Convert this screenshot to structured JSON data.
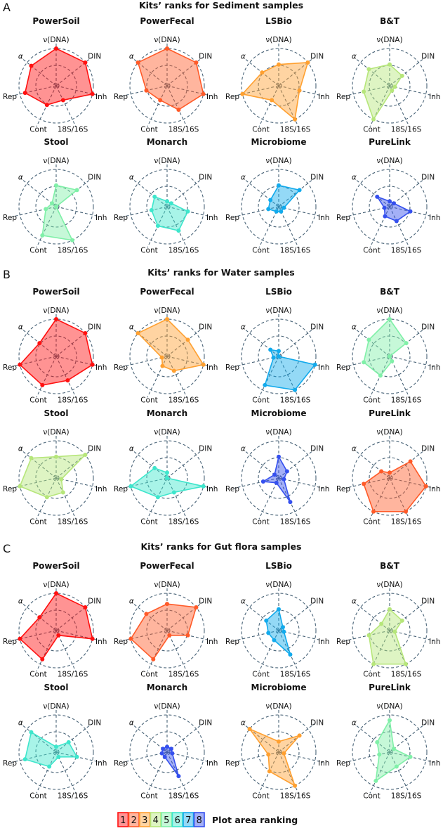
{
  "legend": {
    "title": "Plot area ranking",
    "ranks": [
      "1",
      "2",
      "3",
      "4",
      "5",
      "6",
      "7",
      "8"
    ],
    "colors": [
      "#ff1010",
      "#ff5a28",
      "#ffa030",
      "#b6e67a",
      "#80f0a8",
      "#3ee6cc",
      "#12aaec",
      "#3550ee"
    ]
  },
  "chart_data": [
    {
      "type": "radar",
      "letter": "A",
      "title": "Kits’ ranks for Sediment samples",
      "axes": [
        "ν(DNA)",
        "DIN",
        "Inh",
        "18S/16S",
        "Cont",
        "Rep",
        "α"
      ],
      "scale": [
        0,
        7
      ],
      "kits": [
        {
          "name": "PowerSoil",
          "area_rank": 1,
          "values": [
            7,
            7,
            7,
            3,
            4,
            6,
            6
          ]
        },
        {
          "name": "PowerFecal",
          "area_rank": 2,
          "values": [
            7,
            7,
            7,
            5,
            3,
            4,
            7
          ]
        },
        {
          "name": "LSBio",
          "area_rank": 3,
          "values": [
            4,
            7,
            4,
            7,
            3,
            7,
            4
          ]
        },
        {
          "name": "B&T",
          "area_rank": 4,
          "values": [
            4,
            3,
            1,
            1,
            7,
            5,
            5
          ]
        },
        {
          "name": "Stool",
          "area_rank": 5,
          "values": [
            4,
            5,
            0,
            7,
            6,
            2,
            1
          ]
        },
        {
          "name": "Monarch",
          "area_rank": 6,
          "values": [
            1,
            1,
            4,
            5,
            4,
            3,
            3
          ]
        },
        {
          "name": "Microbiome",
          "area_rank": 7,
          "values": [
            4,
            5,
            1,
            1,
            1,
            2,
            2
          ]
        },
        {
          "name": "PureLink",
          "area_rank": 8,
          "values": [
            1,
            1,
            4,
            3,
            2,
            1,
            3
          ]
        }
      ]
    },
    {
      "type": "radar",
      "letter": "B",
      "title": "Kits’ ranks for Water samples",
      "axes": [
        "ν(DNA)",
        "DIN",
        "Inh",
        "18S/16S",
        "Cont",
        "Rep",
        "α"
      ],
      "scale": [
        0,
        7
      ],
      "kits": [
        {
          "name": "PowerSoil",
          "area_rank": 1,
          "values": [
            7,
            7,
            7,
            5,
            6,
            7,
            4
          ]
        },
        {
          "name": "PowerFecal",
          "area_rank": 3,
          "values": [
            7,
            5,
            7,
            3,
            2,
            1,
            7
          ]
        },
        {
          "name": "LSBio",
          "area_rank": 7,
          "values": [
            1,
            0,
            7,
            7,
            6,
            1,
            2
          ]
        },
        {
          "name": "B&T",
          "area_rank": 5,
          "values": [
            7,
            4,
            0,
            1,
            4,
            5,
            5
          ]
        },
        {
          "name": "Stool",
          "area_rank": 4,
          "values": [
            4,
            7,
            1,
            3,
            4,
            7,
            6
          ]
        },
        {
          "name": "Monarch",
          "area_rank": 6,
          "values": [
            1,
            0,
            7,
            3,
            4,
            7,
            3
          ]
        },
        {
          "name": "Microbiome",
          "area_rank": 8,
          "values": [
            4,
            2,
            1,
            5,
            1,
            3,
            1
          ]
        },
        {
          "name": "PureLink",
          "area_rank": 2,
          "values": [
            1,
            5,
            7,
            7,
            7,
            5,
            2
          ]
        }
      ]
    },
    {
      "type": "radar",
      "letter": "C",
      "title": "Kits’ ranks for Gut flora samples",
      "axes": [
        "ν(DNA)",
        "DIN",
        "Inh",
        "18S/16S",
        "Cont",
        "Rep",
        "α"
      ],
      "scale": [
        0,
        7
      ],
      "kits": [
        {
          "name": "PowerSoil",
          "area_rank": 1,
          "values": [
            7,
            7,
            7,
            1,
            6,
            7,
            4
          ]
        },
        {
          "name": "PowerFecal",
          "area_rank": 2,
          "values": [
            5,
            7,
            4,
            1,
            6,
            7,
            5
          ]
        },
        {
          "name": "LSBio",
          "area_rank": 7,
          "values": [
            4,
            1,
            1,
            5,
            2,
            2,
            3
          ]
        },
        {
          "name": "B&T",
          "area_rank": 4,
          "values": [
            4,
            3,
            1,
            7,
            7,
            4,
            2
          ]
        },
        {
          "name": "Stool",
          "area_rank": 6,
          "values": [
            1,
            3,
            4,
            1,
            3,
            6,
            6
          ]
        },
        {
          "name": "Monarch",
          "area_rank": 8,
          "values": [
            1,
            1,
            1,
            5,
            1,
            1,
            1
          ]
        },
        {
          "name": "Microbiome",
          "area_rank": 3,
          "values": [
            2,
            5,
            1,
            7,
            4,
            2,
            7
          ]
        },
        {
          "name": "PureLink",
          "area_rank": 5,
          "values": [
            6,
            1,
            4,
            3,
            6,
            2,
            3
          ]
        }
      ]
    }
  ]
}
